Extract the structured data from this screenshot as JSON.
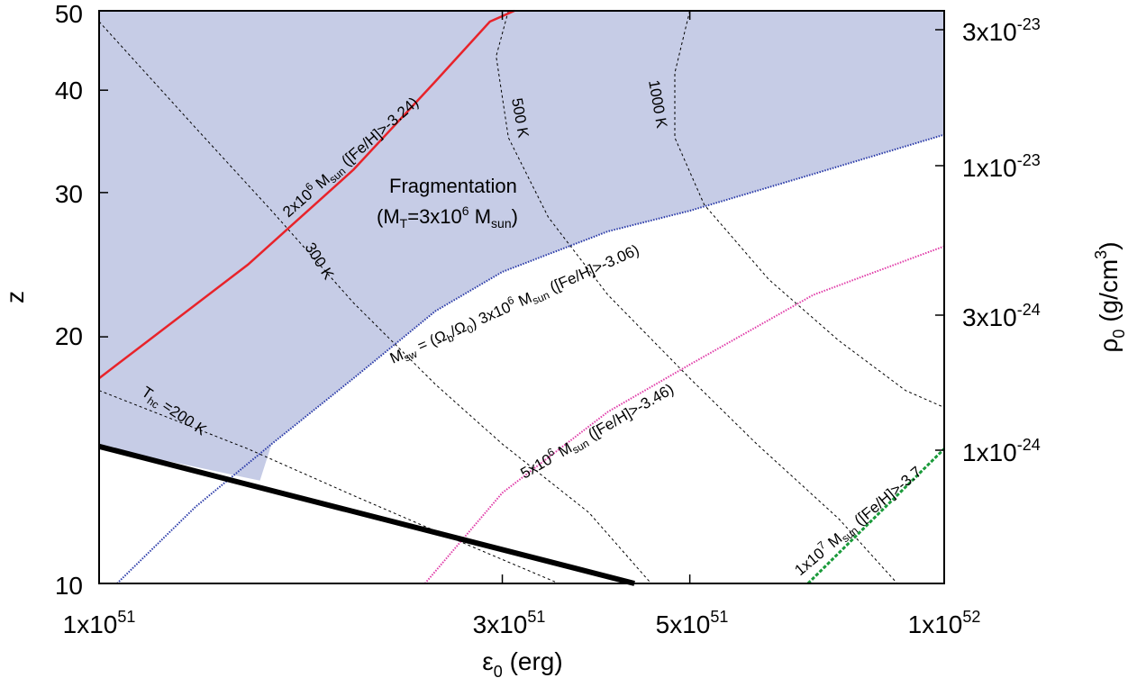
{
  "chart_data": {
    "type": "line",
    "x_axis": {
      "title": "ε0 (erg)",
      "scale": "log",
      "range": [
        1e+51,
        1e+52
      ],
      "ticks": [
        {
          "value": 1e+51,
          "label": "1x1051"
        },
        {
          "value": 3e+51,
          "label": "3x1051"
        },
        {
          "value": 5e+51,
          "label": "5x1051"
        },
        {
          "value": 1e+52,
          "label": "1x1052"
        }
      ]
    },
    "y_axis": {
      "title": "z",
      "scale": "log",
      "range": [
        10,
        50
      ],
      "ticks": [
        {
          "value": 10,
          "label": "10"
        },
        {
          "value": 20,
          "label": "20"
        },
        {
          "value": 30,
          "label": "30"
        },
        {
          "value": 40,
          "label": "40"
        },
        {
          "value": 50,
          "label": "50"
        }
      ]
    },
    "y2_axis": {
      "title": "ρ0 (g/cm3)",
      "ticks": [
        {
          "value": 3e-23,
          "label": "3x10-23"
        },
        {
          "value": 1e-23,
          "label": "1x10-23"
        },
        {
          "value": 3e-24,
          "label": "3x10-24"
        },
        {
          "value": 1e-24,
          "label": "1x10-24"
        }
      ]
    },
    "shaded_region": {
      "label_line1": "Fragmentation",
      "label_line2": "(MT=3x106 Msun)",
      "color": "#c6cce6"
    },
    "series": [
      {
        "id": "red",
        "label": "2x106 Msun ([Fe/H]>-3.24)",
        "color": "#e8232a",
        "style": "solid",
        "points": [
          [
            1e+51,
            17.8
          ],
          [
            1.5e+51,
            24.5
          ],
          [
            2e+51,
            32
          ],
          [
            2.5e+51,
            41
          ],
          [
            2.9e+51,
            48.5
          ],
          [
            3.1e+51,
            50
          ]
        ]
      },
      {
        "id": "blue",
        "label": "Msw = (Ωb/Ω0) 3x106 Msun ([Fe/H]>-3.06)",
        "color": "#2a3aa8",
        "style": "dotted",
        "points": [
          [
            1.05e+51,
            10
          ],
          [
            1.3e+51,
            12.4
          ],
          [
            1.6e+51,
            14.8
          ],
          [
            2e+51,
            17.8
          ],
          [
            2.5e+51,
            21.5
          ],
          [
            3e+51,
            24
          ],
          [
            4e+51,
            26.9
          ],
          [
            5e+51,
            28.5
          ],
          [
            7e+51,
            31.6
          ],
          [
            1e+52,
            35.3
          ]
        ]
      },
      {
        "id": "magenta",
        "label": "5x106 Msun ([Fe/H]>-3.46)",
        "color": "#e03ca8",
        "style": "dotted",
        "points": [
          [
            2.43e+51,
            10
          ],
          [
            3e+51,
            12.9
          ],
          [
            4e+51,
            16.2
          ],
          [
            5e+51,
            18.5
          ],
          [
            7e+51,
            22.5
          ],
          [
            1e+52,
            25.8
          ]
        ]
      },
      {
        "id": "green",
        "label": "1x107 Msun ([Fe/H]>-3.7",
        "color": "#1a9a3a",
        "style": "dashed",
        "points": [
          [
            6.9e+51,
            10
          ],
          [
            1e+52,
            14.6
          ]
        ]
      },
      {
        "id": "black",
        "label": "",
        "color": "#000000",
        "style": "solid-thick",
        "points": [
          [
            1e+51,
            14.7
          ],
          [
            4.3e+51,
            10
          ]
        ]
      }
    ],
    "isotherms": [
      {
        "label": "Thc=200 K",
        "points": [
          [
            1e+51,
            17.2
          ],
          [
            1.5e+51,
            14.6
          ],
          [
            2e+51,
            12.8
          ],
          [
            2.7e+51,
            11.2
          ],
          [
            3.5e+51,
            10
          ]
        ]
      },
      {
        "label": "300 K",
        "points": [
          [
            1e+51,
            48.5
          ],
          [
            1.3e+51,
            36
          ],
          [
            1.6e+51,
            28.5
          ],
          [
            2e+51,
            22
          ],
          [
            2.5e+51,
            17.5
          ],
          [
            3e+51,
            14.8
          ],
          [
            3.8e+51,
            12.2
          ],
          [
            4.5e+51,
            10
          ]
        ]
      },
      {
        "label": "500 K",
        "points": [
          [
            3.05e+51,
            50
          ],
          [
            2.95e+51,
            44
          ],
          [
            3.05e+51,
            35
          ],
          [
            3.4e+51,
            28
          ],
          [
            4e+51,
            22.5
          ],
          [
            5e+51,
            17.8
          ],
          [
            6e+51,
            14.8
          ],
          [
            7.5e+51,
            12
          ],
          [
            8.8e+51,
            10
          ]
        ]
      },
      {
        "label": "1000 K",
        "points": [
          [
            5e+51,
            50
          ],
          [
            4.8e+51,
            42
          ],
          [
            4.8e+51,
            35
          ],
          [
            5.2e+51,
            29
          ],
          [
            6.2e+51,
            23.5
          ],
          [
            7.5e+51,
            19.8
          ],
          [
            9e+51,
            17.2
          ],
          [
            1e+52,
            16.4
          ]
        ]
      }
    ]
  }
}
